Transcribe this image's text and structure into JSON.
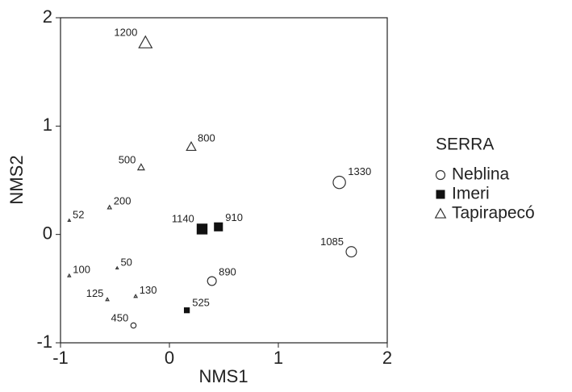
{
  "chart_data": {
    "type": "scatter",
    "xlabel": "NMS1",
    "ylabel": "NMS2",
    "xlim": [
      -1,
      2
    ],
    "ylim": [
      -1,
      2
    ],
    "xticks": [
      -1,
      0,
      1,
      2
    ],
    "yticks": [
      -1,
      0,
      1,
      2
    ],
    "legend_title": "SERRA",
    "legend": "right",
    "series": [
      {
        "name": "Neblina",
        "marker": "circle",
        "color": "#333333",
        "x": [
          1.56,
          1.67,
          0.39,
          -0.33
        ],
        "y": [
          0.48,
          -0.16,
          -0.43,
          -0.84
        ],
        "labels": [
          "1330",
          "1085",
          "890",
          "450"
        ]
      },
      {
        "name": "Imeri",
        "marker": "square",
        "color": "#111111",
        "x": [
          0.3,
          0.45,
          0.16
        ],
        "y": [
          0.05,
          0.07,
          -0.7
        ],
        "labels": [
          "1140",
          "910",
          "525"
        ]
      },
      {
        "name": "Tapirapecó",
        "marker": "triangle",
        "color": "#333333",
        "x": [
          -0.22,
          0.2,
          -0.26,
          -0.55,
          -0.92,
          -0.92,
          -0.48,
          -0.57,
          -0.31
        ],
        "y": [
          1.77,
          0.81,
          0.62,
          0.25,
          0.13,
          -0.38,
          -0.31,
          -0.6,
          -0.57
        ],
        "labels": [
          "1200",
          "800",
          "500",
          "200",
          "52",
          "100",
          "50",
          "125",
          "130"
        ]
      }
    ]
  }
}
